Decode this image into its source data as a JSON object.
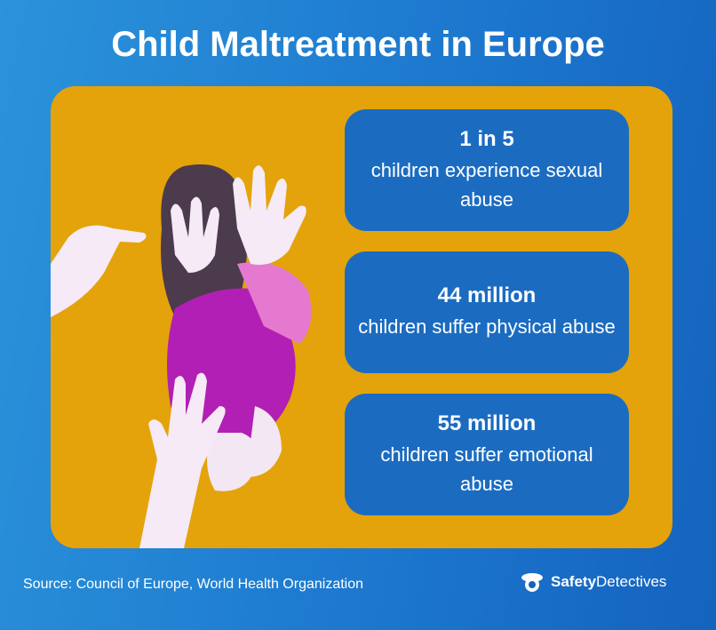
{
  "title": "Child Maltreatment in Europe",
  "stats": [
    {
      "headline": "1 in 5",
      "text": "children experience sexual abuse"
    },
    {
      "headline": "44 million",
      "text": "children suffer physical abuse"
    },
    {
      "headline": "55 million",
      "text": "children suffer emotional abuse"
    }
  ],
  "source": "Source: Council of Europe, World Health Organization",
  "brand": {
    "bold": "Safety",
    "regular": "Detectives"
  }
}
